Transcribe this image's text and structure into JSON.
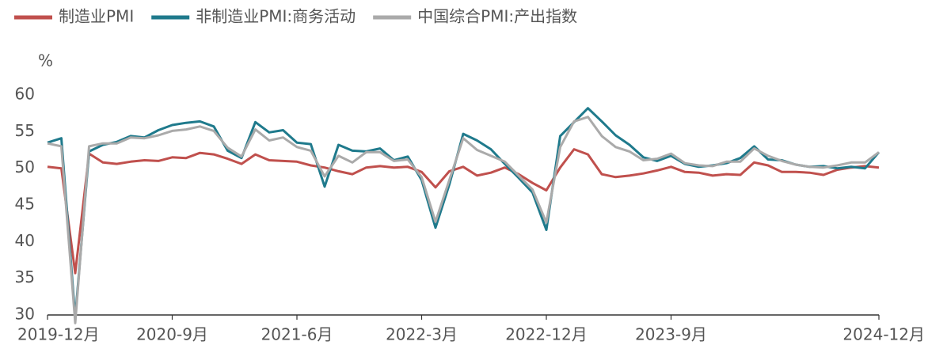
{
  "chart_data": {
    "type": "line",
    "y_label": "%",
    "categories": [
      "2019-12月",
      null,
      null,
      null,
      null,
      null,
      null,
      null,
      null,
      "2020-9月",
      null,
      null,
      null,
      null,
      null,
      null,
      null,
      null,
      "2021-6月",
      null,
      null,
      null,
      null,
      null,
      null,
      null,
      null,
      "2022-3月",
      null,
      null,
      null,
      null,
      null,
      null,
      null,
      null,
      "2022-12月",
      null,
      null,
      null,
      null,
      null,
      null,
      null,
      null,
      "2023-9月",
      null,
      null,
      null,
      null,
      null,
      null,
      null,
      null,
      null,
      null,
      null,
      null,
      null,
      null,
      "2024-12月"
    ],
    "series": [
      {
        "name": "制造业PMI",
        "color": "#c0504d",
        "values": [
          50.2,
          50.0,
          35.7,
          52.0,
          50.8,
          50.6,
          50.9,
          51.1,
          51.0,
          51.5,
          51.4,
          52.1,
          51.9,
          51.3,
          50.6,
          51.9,
          51.1,
          51.0,
          50.9,
          50.4,
          50.1,
          49.6,
          49.2,
          50.1,
          50.3,
          50.1,
          50.2,
          49.5,
          47.4,
          49.6,
          50.2,
          49.0,
          49.4,
          50.1,
          49.2,
          48.0,
          47.0,
          50.1,
          52.6,
          51.9,
          49.2,
          48.8,
          49.0,
          49.3,
          49.7,
          50.2,
          49.5,
          49.4,
          49.0,
          49.2,
          49.1,
          50.8,
          50.4,
          49.5,
          49.5,
          49.4,
          49.1,
          49.8,
          50.1,
          50.3,
          50.1
        ]
      },
      {
        "name": "非制造业PMI:商务活动",
        "color": "#1f7a8c",
        "values": [
          53.5,
          54.1,
          29.6,
          52.3,
          53.2,
          53.6,
          54.4,
          54.2,
          55.2,
          55.9,
          56.2,
          56.4,
          55.7,
          52.4,
          51.4,
          56.3,
          54.9,
          55.2,
          53.5,
          53.3,
          47.5,
          53.2,
          52.4,
          52.3,
          52.7,
          51.1,
          51.6,
          48.4,
          41.9,
          47.8,
          54.7,
          53.8,
          52.6,
          50.6,
          48.7,
          46.7,
          41.6,
          54.4,
          56.3,
          58.2,
          56.4,
          54.5,
          53.2,
          51.5,
          51.0,
          51.7,
          50.6,
          50.2,
          50.4,
          50.7,
          51.4,
          53.0,
          51.2,
          51.1,
          50.5,
          50.2,
          50.3,
          50.0,
          50.2,
          50.0,
          52.2
        ]
      },
      {
        "name": "中国综合PMI:产出指数",
        "color": "#aaaaaa",
        "values": [
          53.4,
          53.0,
          28.9,
          53.0,
          53.4,
          53.4,
          54.2,
          54.1,
          54.5,
          55.1,
          55.3,
          55.7,
          55.1,
          52.8,
          51.6,
          55.3,
          53.8,
          54.2,
          52.9,
          52.4,
          48.9,
          51.7,
          50.8,
          52.2,
          52.2,
          51.0,
          51.2,
          48.8,
          42.7,
          48.4,
          54.1,
          52.5,
          51.7,
          50.9,
          49.0,
          47.1,
          42.6,
          52.9,
          56.4,
          57.0,
          54.4,
          52.9,
          52.3,
          51.1,
          51.3,
          52.0,
          50.7,
          50.4,
          50.3,
          50.9,
          50.9,
          52.7,
          51.7,
          51.0,
          50.5,
          50.2,
          50.1,
          50.4,
          50.8,
          50.8,
          52.2
        ]
      }
    ],
    "ylim": [
      30,
      60
    ],
    "yticks": [
      30,
      35,
      40,
      45,
      50,
      55,
      60
    ],
    "legend": "top"
  }
}
